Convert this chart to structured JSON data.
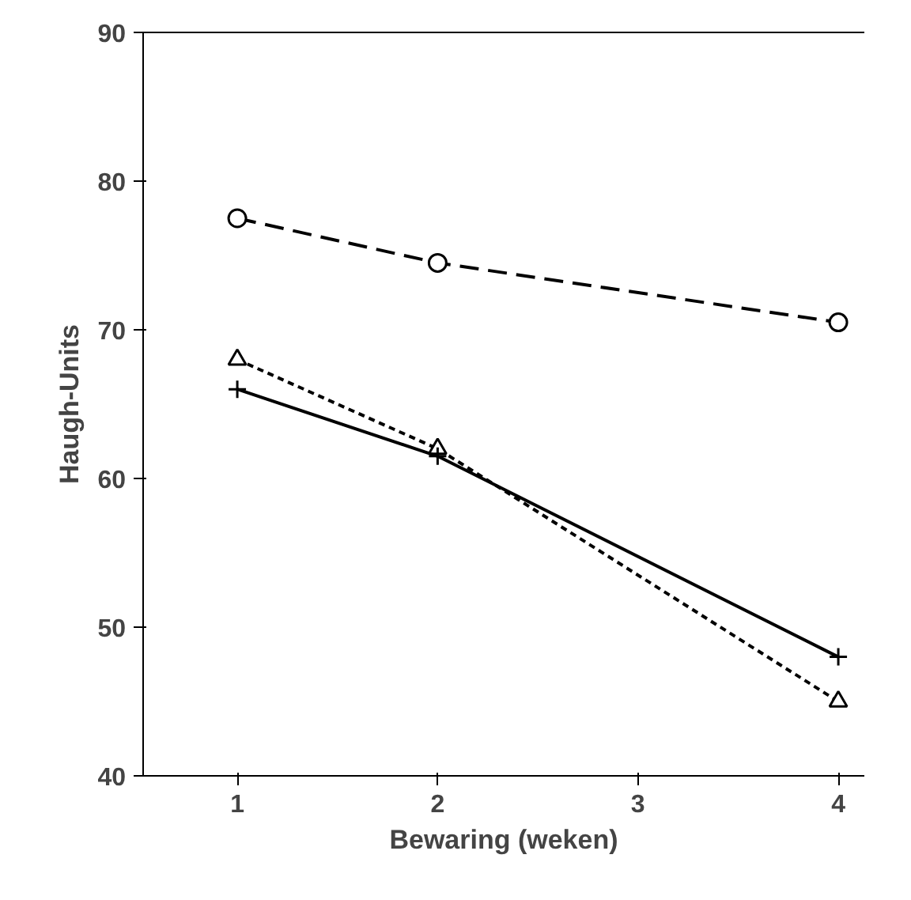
{
  "chart_data": {
    "type": "line",
    "xlabel": "Bewaring (weken)",
    "ylabel": "Haugh-Units",
    "x": [
      1,
      2,
      4
    ],
    "xlim": [
      0.53,
      4.13
    ],
    "xticks": [
      1,
      2,
      3,
      4
    ],
    "ylim": [
      40,
      90
    ],
    "yticks": [
      40,
      50,
      60,
      70,
      80,
      90
    ],
    "grid": false,
    "series": [
      {
        "color": "#000000",
        "values": [
          77.5,
          74.5,
          70.5
        ],
        "marker": "circle",
        "line_style": "dashed"
      },
      {
        "color": "#000000",
        "values": [
          68,
          62,
          45
        ],
        "marker": "triangle",
        "line_style": "dotted"
      },
      {
        "color": "#000000",
        "values": [
          66,
          61.5,
          48
        ],
        "marker": "cross",
        "line_style": "solid"
      }
    ]
  }
}
